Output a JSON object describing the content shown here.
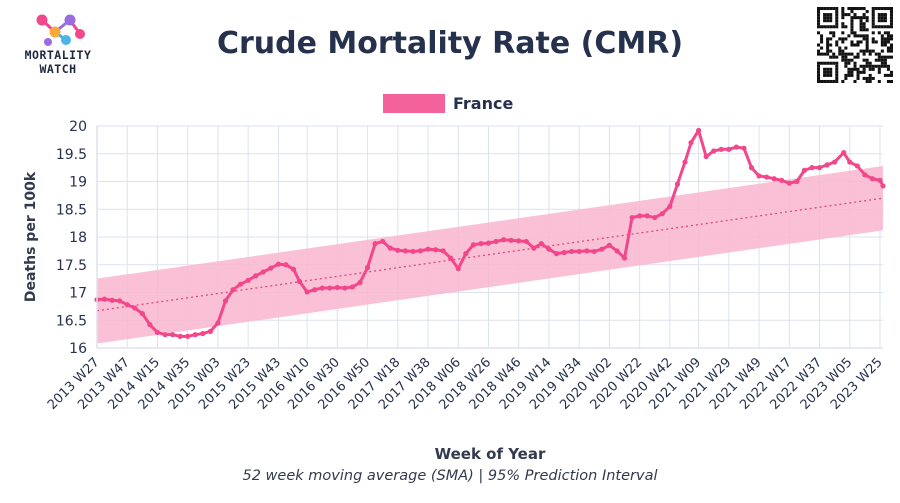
{
  "header": {
    "brand_line1": "MORTALITY",
    "brand_line2": "WATCH",
    "title": "Crude Mortality Rate (CMR)"
  },
  "footer": {
    "caption": "52 week moving average (SMA) | 95% Prediction Interval"
  },
  "colors": {
    "series": "#f2478a",
    "band": "#f9b6cf",
    "trend": "#e0457f",
    "text": "#26314d",
    "grid": "#dde2ef"
  },
  "icons": {
    "logo": "mortality-watch-logo",
    "qr": "qr-code"
  },
  "chart_data": {
    "type": "line",
    "title": "Crude Mortality Rate (CMR)",
    "xlabel": "Week of Year",
    "ylabel": "Deaths per 100k",
    "ylim": [
      16,
      20
    ],
    "yticks": [
      16,
      16.5,
      17,
      17.5,
      18,
      18.5,
      19,
      19.5,
      20
    ],
    "xticks": [
      "2013 W27",
      "2013 W47",
      "2014 W15",
      "2014 W35",
      "2015 W03",
      "2015 W23",
      "2015 W43",
      "2016 W10",
      "2016 W30",
      "2016 W50",
      "2017 W18",
      "2017 W38",
      "2018 W06",
      "2018 W26",
      "2018 W46",
      "2019 W14",
      "2019 W34",
      "2020 W02",
      "2020 W22",
      "2020 W42",
      "2021 W09",
      "2021 W29",
      "2021 W49",
      "2022 W17",
      "2022 W37",
      "2023 W05",
      "2023 W25"
    ],
    "legend": {
      "entries": [
        "France"
      ],
      "position": "top-center"
    },
    "grid": true,
    "x_range": [
      "2013 W27",
      "2023 W27"
    ],
    "series": [
      {
        "name": "France",
        "values": [
          [
            "2013 W27",
            16.87
          ],
          [
            "2013 W32",
            16.88
          ],
          [
            "2013 W37",
            16.86
          ],
          [
            "2013 W42",
            16.85
          ],
          [
            "2013 W47",
            16.78
          ],
          [
            "2013 W52",
            16.72
          ],
          [
            "2014 W05",
            16.62
          ],
          [
            "2014 W10",
            16.42
          ],
          [
            "2014 W15",
            16.28
          ],
          [
            "2014 W20",
            16.24
          ],
          [
            "2014 W25",
            16.24
          ],
          [
            "2014 W30",
            16.21
          ],
          [
            "2014 W35",
            16.21
          ],
          [
            "2014 W40",
            16.24
          ],
          [
            "2014 W45",
            16.26
          ],
          [
            "2014 W50",
            16.3
          ],
          [
            "2015 W03",
            16.45
          ],
          [
            "2015 W08",
            16.85
          ],
          [
            "2015 W13",
            17.05
          ],
          [
            "2015 W18",
            17.15
          ],
          [
            "2015 W23",
            17.22
          ],
          [
            "2015 W28",
            17.3
          ],
          [
            "2015 W33",
            17.37
          ],
          [
            "2015 W38",
            17.44
          ],
          [
            "2015 W43",
            17.51
          ],
          [
            "2015 W48",
            17.5
          ],
          [
            "2016 W01",
            17.42
          ],
          [
            "2016 W05",
            17.2
          ],
          [
            "2016 W10",
            17.01
          ],
          [
            "2016 W15",
            17.05
          ],
          [
            "2016 W20",
            17.08
          ],
          [
            "2016 W25",
            17.08
          ],
          [
            "2016 W30",
            17.09
          ],
          [
            "2016 W35",
            17.08
          ],
          [
            "2016 W40",
            17.1
          ],
          [
            "2016 W45",
            17.18
          ],
          [
            "2016 W50",
            17.45
          ],
          [
            "2017 W03",
            17.88
          ],
          [
            "2017 W08",
            17.92
          ],
          [
            "2017 W13",
            17.8
          ],
          [
            "2017 W18",
            17.76
          ],
          [
            "2017 W23",
            17.75
          ],
          [
            "2017 W28",
            17.74
          ],
          [
            "2017 W33",
            17.75
          ],
          [
            "2017 W38",
            17.78
          ],
          [
            "2017 W43",
            17.77
          ],
          [
            "2017 W48",
            17.75
          ],
          [
            "2018 W01",
            17.62
          ],
          [
            "2018 W06",
            17.43
          ],
          [
            "2018 W11",
            17.7
          ],
          [
            "2018 W16",
            17.86
          ],
          [
            "2018 W21",
            17.88
          ],
          [
            "2018 W26",
            17.89
          ],
          [
            "2018 W31",
            17.92
          ],
          [
            "2018 W36",
            17.95
          ],
          [
            "2018 W41",
            17.94
          ],
          [
            "2018 W46",
            17.93
          ],
          [
            "2018 W51",
            17.92
          ],
          [
            "2019 W04",
            17.8
          ],
          [
            "2019 W09",
            17.88
          ],
          [
            "2019 W14",
            17.78
          ],
          [
            "2019 W19",
            17.7
          ],
          [
            "2019 W24",
            17.72
          ],
          [
            "2019 W29",
            17.74
          ],
          [
            "2019 W34",
            17.74
          ],
          [
            "2019 W39",
            17.75
          ],
          [
            "2019 W44",
            17.74
          ],
          [
            "2019 W49",
            17.78
          ],
          [
            "2020 W02",
            17.85
          ],
          [
            "2020 W07",
            17.75
          ],
          [
            "2020 W12",
            17.62
          ],
          [
            "2020 W17",
            18.35
          ],
          [
            "2020 W22",
            18.38
          ],
          [
            "2020 W27",
            18.38
          ],
          [
            "2020 W32",
            18.35
          ],
          [
            "2020 W37",
            18.42
          ],
          [
            "2020 W42",
            18.55
          ],
          [
            "2020 W47",
            18.95
          ],
          [
            "2020 W52",
            19.35
          ],
          [
            "2021 W04",
            19.7
          ],
          [
            "2021 W09",
            19.92
          ],
          [
            "2021 W14",
            19.45
          ],
          [
            "2021 W19",
            19.55
          ],
          [
            "2021 W24",
            19.58
          ],
          [
            "2021 W29",
            19.58
          ],
          [
            "2021 W34",
            19.62
          ],
          [
            "2021 W39",
            19.6
          ],
          [
            "2021 W44",
            19.25
          ],
          [
            "2021 W49",
            19.1
          ],
          [
            "2022 W02",
            19.08
          ],
          [
            "2022 W07",
            19.05
          ],
          [
            "2022 W12",
            19.02
          ],
          [
            "2022 W17",
            18.97
          ],
          [
            "2022 W22",
            19.0
          ],
          [
            "2022 W27",
            19.2
          ],
          [
            "2022 W32",
            19.25
          ],
          [
            "2022 W37",
            19.25
          ],
          [
            "2022 W42",
            19.3
          ],
          [
            "2022 W47",
            19.35
          ],
          [
            "2023 W01",
            19.52
          ],
          [
            "2023 W05",
            19.35
          ],
          [
            "2023 W10",
            19.28
          ],
          [
            "2023 W15",
            19.12
          ],
          [
            "2023 W20",
            19.05
          ],
          [
            "2023 W25",
            19.02
          ],
          [
            "2023 W27",
            18.92
          ]
        ]
      }
    ],
    "trend": {
      "start": [
        "2013 W27",
        16.67
      ],
      "end": [
        "2023 W27",
        18.7
      ]
    },
    "prediction_interval": {
      "start": [
        16.08,
        17.25
      ],
      "end": [
        18.12,
        19.28
      ]
    }
  }
}
